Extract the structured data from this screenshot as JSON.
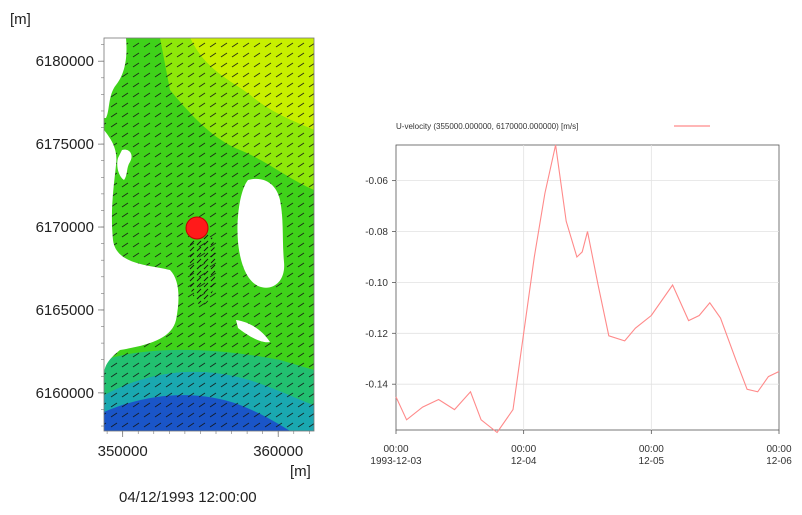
{
  "map": {
    "unit_top": "[m]",
    "unit_right": "[m]",
    "y_ticks": [
      "6180000",
      "6175000",
      "6170000",
      "6165000",
      "6160000"
    ],
    "x_ticks": [
      "350000",
      "360000"
    ],
    "timestamp": "04/12/1993 12:00:00",
    "marker_color": "#ff1a1a"
  },
  "chart_data": {
    "type": "line",
    "legend": "U-velocity (355000.000000, 6170000.000000) [m/s]",
    "series_color": "#ff8a8a",
    "x_range": [
      "1993-12-03 00:00",
      "1993-12-06 00:00"
    ],
    "ylim": [
      -0.158,
      -0.046
    ],
    "y_ticks": [
      "-0.06",
      "-0.08",
      "-0.10",
      "-0.12",
      "-0.14"
    ],
    "x_ticks_top": [
      "00:00",
      "00:00",
      "00:00",
      "00:00"
    ],
    "x_ticks_bottom": [
      "1993-12-03",
      "12-04",
      "12-05",
      "12-06"
    ],
    "grid": true,
    "x": [
      "1993-12-03 00:00",
      "1993-12-03 02:00",
      "1993-12-03 05:00",
      "1993-12-03 08:00",
      "1993-12-03 11:00",
      "1993-12-03 14:00",
      "1993-12-03 16:00",
      "1993-12-03 19:00",
      "1993-12-03 22:00",
      "1993-12-04 02:00",
      "1993-12-04 04:00",
      "1993-12-04 06:00",
      "1993-12-04 08:00",
      "1993-12-04 10:00",
      "1993-12-04 11:00",
      "1993-12-04 12:00",
      "1993-12-04 14:00",
      "1993-12-04 16:00",
      "1993-12-04 19:00",
      "1993-12-04 21:00",
      "1993-12-05 00:00",
      "1993-12-05 04:00",
      "1993-12-05 07:00",
      "1993-12-05 09:00",
      "1993-12-05 11:00",
      "1993-12-05 13:00",
      "1993-12-05 16:00",
      "1993-12-05 18:00",
      "1993-12-05 20:00",
      "1993-12-05 22:00",
      "1993-12-06 00:00"
    ],
    "y": [
      -0.145,
      -0.154,
      -0.149,
      -0.146,
      -0.15,
      -0.143,
      -0.154,
      -0.159,
      -0.15,
      -0.09,
      -0.065,
      -0.046,
      -0.076,
      -0.09,
      -0.088,
      -0.08,
      -0.101,
      -0.121,
      -0.123,
      -0.118,
      -0.113,
      -0.101,
      -0.115,
      -0.113,
      -0.108,
      -0.114,
      -0.131,
      -0.142,
      -0.143,
      -0.137,
      -0.135
    ]
  }
}
